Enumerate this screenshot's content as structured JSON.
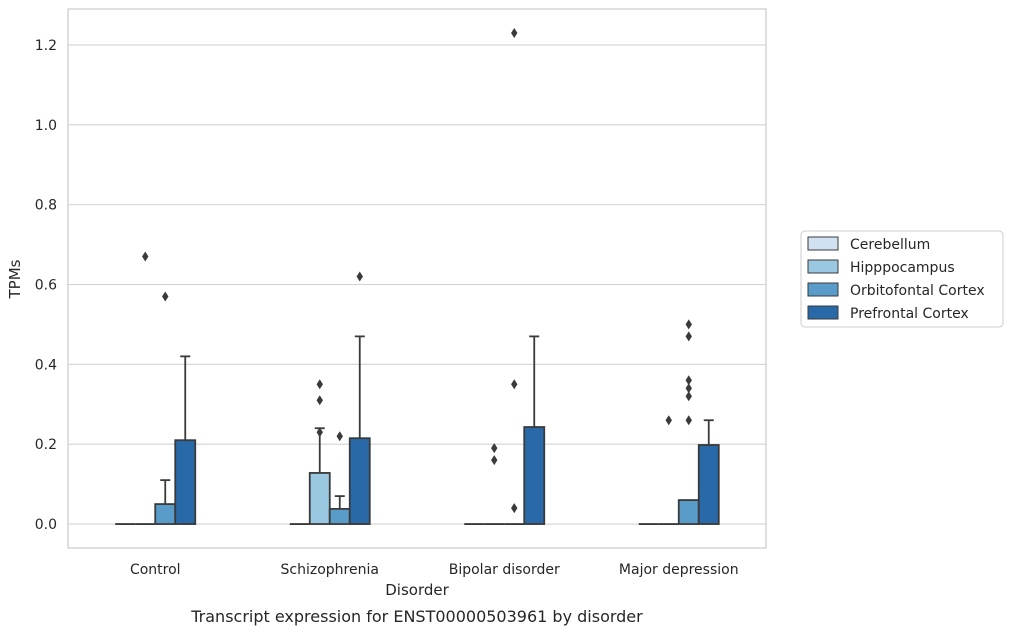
{
  "chart_data": {
    "type": "bar",
    "ylabel": "TPMs",
    "xlabel": "Disorder",
    "caption": "Transcript expression for ENST00000503961 by disorder",
    "ylim": [
      -0.06,
      1.29
    ],
    "yticks": [
      "0.0",
      "0.2",
      "0.4",
      "0.6",
      "0.8",
      "1.0",
      "1.2"
    ],
    "grid": "horizontal",
    "legend_position": "right",
    "categories": [
      "Control",
      "Schizophrenia",
      "Bipolar disorder",
      "Major depression"
    ],
    "series": [
      {
        "name": "Cerebellum",
        "color": "#d0e2f2",
        "values": [
          0,
          0,
          0,
          0
        ],
        "error_upper": [
          null,
          null,
          null,
          null
        ],
        "outliers": [
          [],
          [],
          [],
          []
        ]
      },
      {
        "name": "Hipppocampus",
        "color": "#9ac8e0",
        "values": [
          0,
          0.128,
          0,
          0
        ],
        "error_upper": [
          null,
          0.24,
          null,
          null
        ],
        "outliers": [
          [],
          [
            0.23,
            0.31,
            0.35
          ],
          [
            0.16,
            0.19
          ],
          [
            0.26
          ]
        ]
      },
      {
        "name": "Orbitofontal Cortex",
        "color": "#5a9cc9",
        "values": [
          0.05,
          0.038,
          0,
          0.06
        ],
        "error_upper": [
          0.11,
          0.07,
          null,
          null
        ],
        "outliers": [
          [
            0.57
          ],
          [
            0.22
          ],
          [
            0.04,
            0.35,
            1.23
          ],
          [
            0.26,
            0.32,
            0.5
          ]
        ]
      },
      {
        "name": "Prefrontal Cortex",
        "color": "#2a69a8",
        "values": [
          0.21,
          0.215,
          0.243,
          0.198
        ],
        "error_upper": [
          0.42,
          0.47,
          0.47,
          0.26
        ],
        "outliers": [
          [],
          [
            0.62
          ],
          [],
          []
        ]
      }
    ],
    "extra_outliers": [
      {
        "category": 0,
        "series": 1,
        "value": 0.67
      },
      {
        "category": 3,
        "series": 2,
        "value": 0.34
      },
      {
        "category": 3,
        "series": 2,
        "value": 0.36
      },
      {
        "category": 3,
        "series": 2,
        "value": 0.47
      }
    ]
  }
}
